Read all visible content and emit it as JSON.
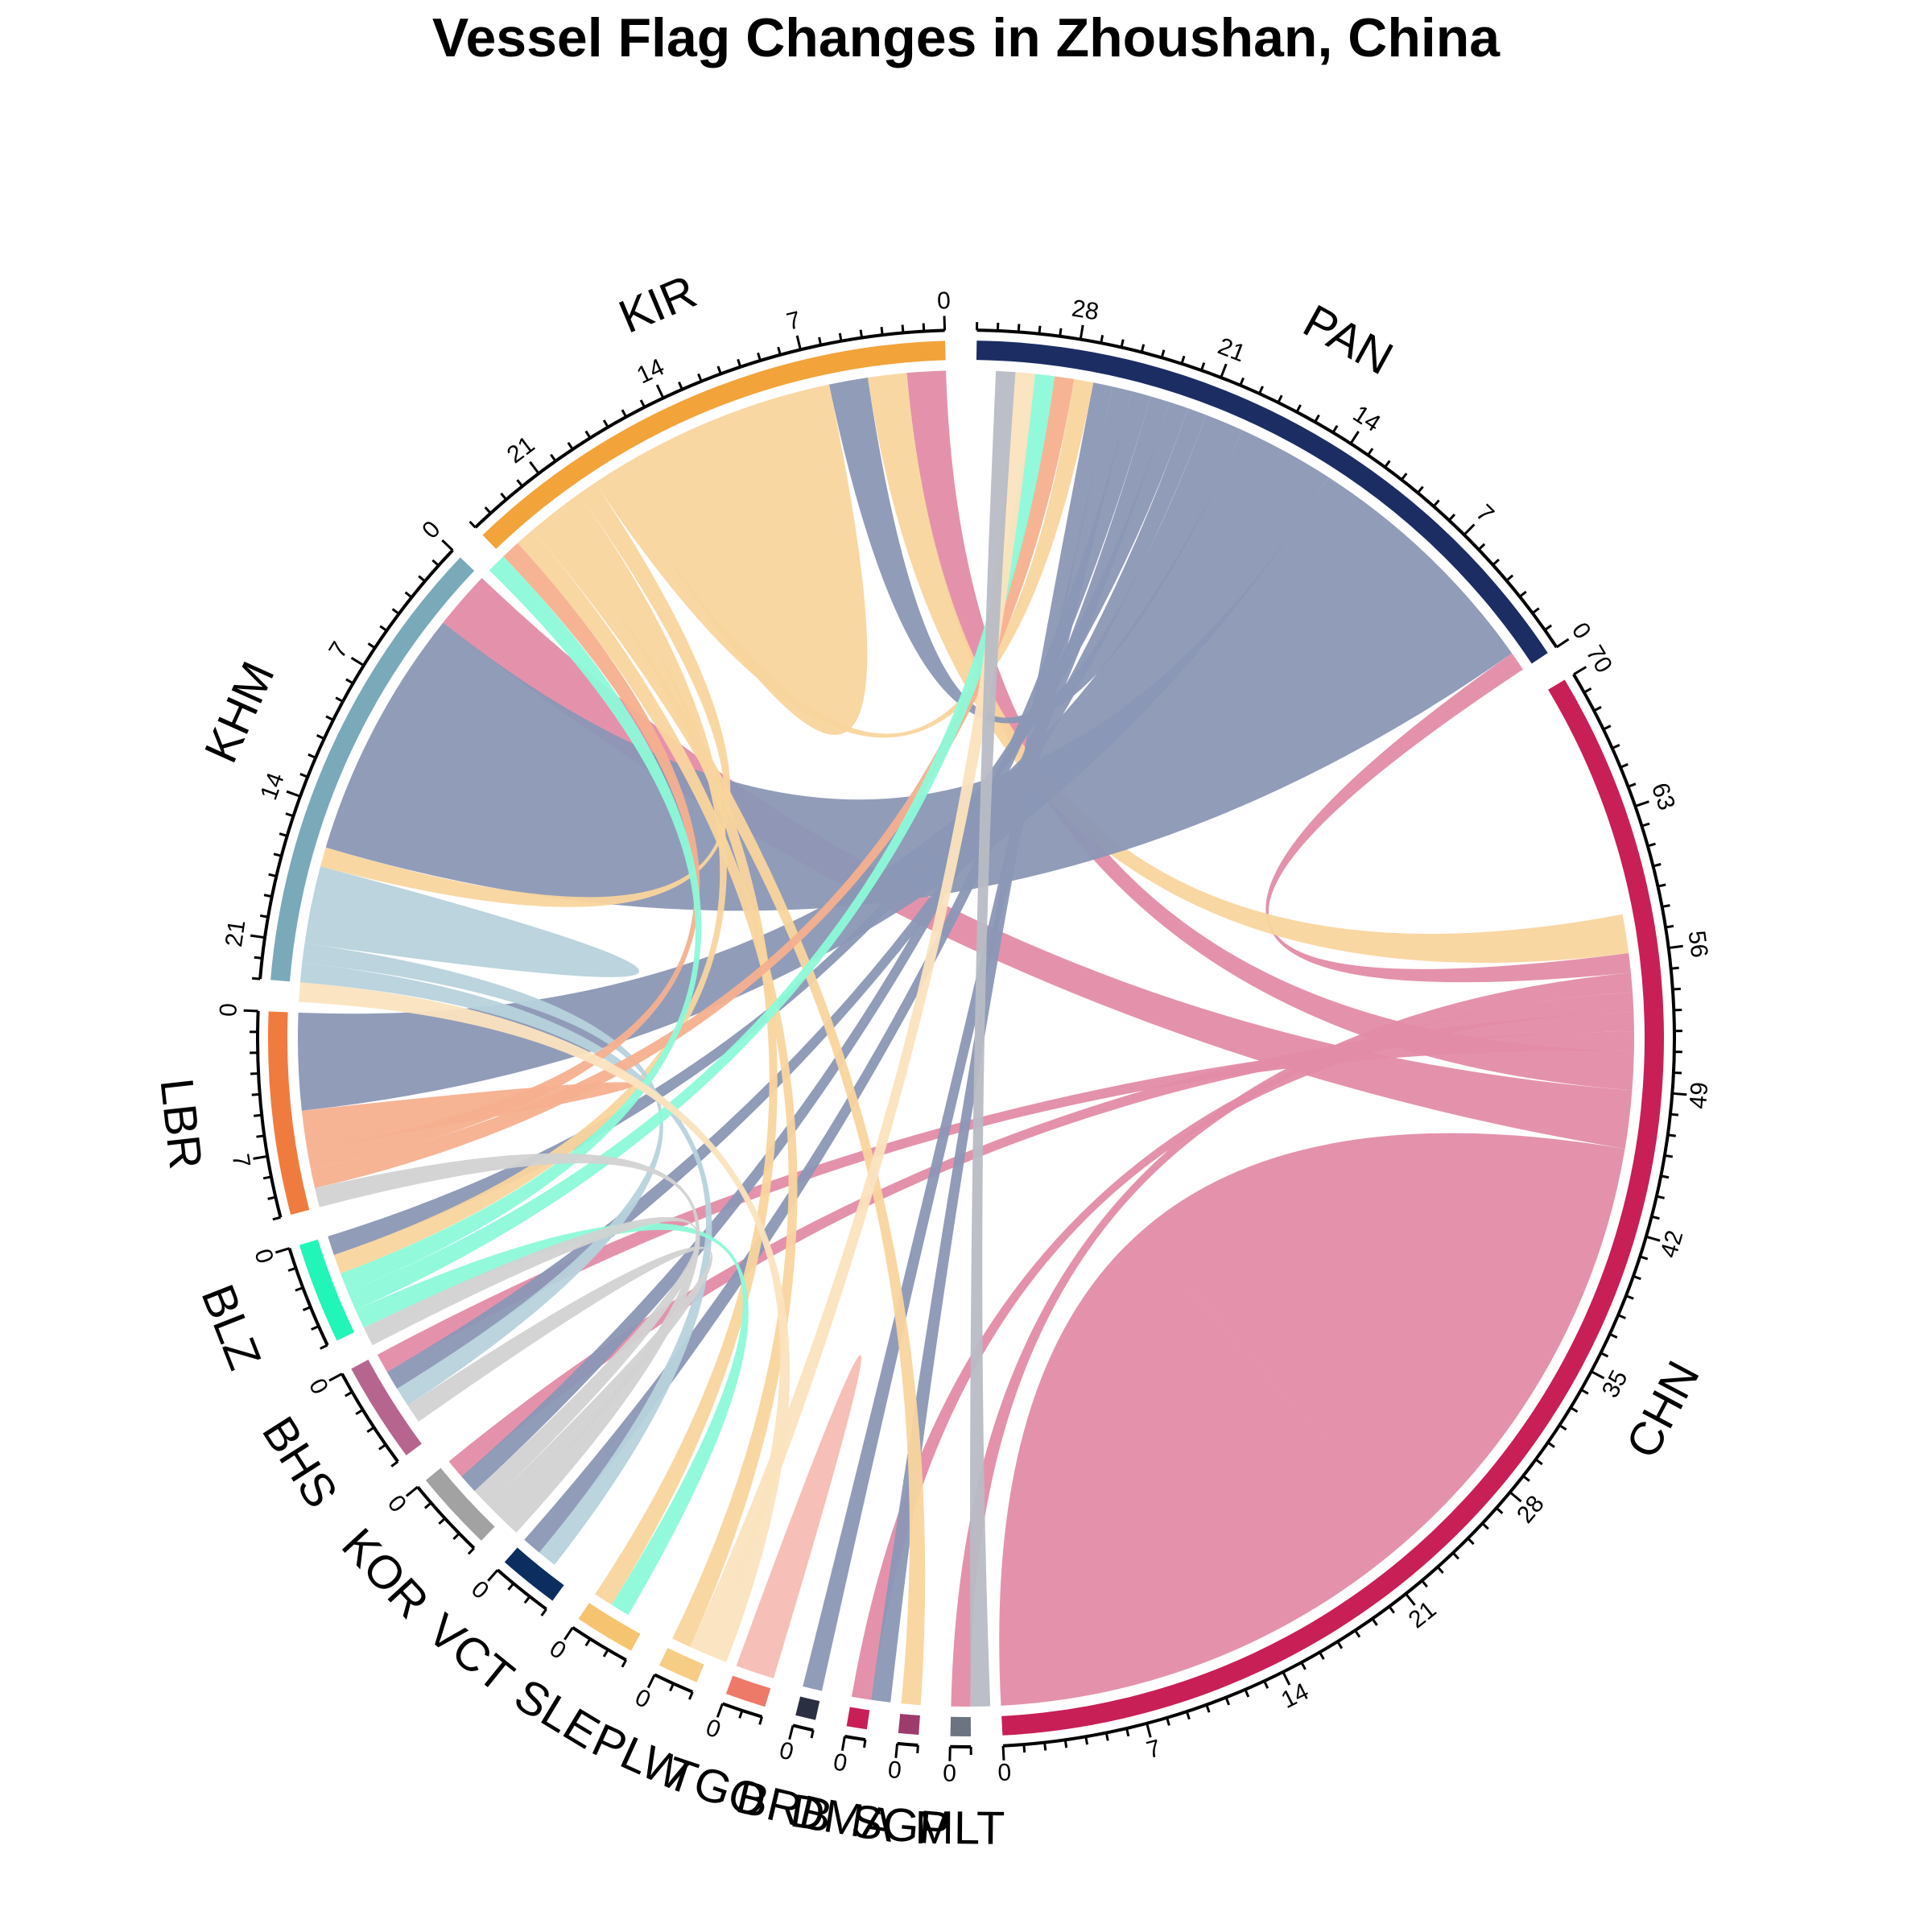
{
  "chart_data": {
    "type": "chord",
    "title": "Vessel Flag Changes in Zhoushan, China",
    "major_tick_step": 7,
    "minor_tick_step": 1,
    "sectors": [
      {
        "name": "CHN",
        "total": 70,
        "color": "#c81f56"
      },
      {
        "name": "PAN",
        "total": 33,
        "color": "#1c2d64"
      },
      {
        "name": "KIR",
        "total": 25,
        "color": "#f2a33a"
      },
      {
        "name": "KHM",
        "total": 23,
        "color": "#7aa9ba"
      },
      {
        "name": "LBR",
        "total": 10,
        "color": "#f07b3f"
      },
      {
        "name": "BLZ",
        "total": 5,
        "color": "#21f5b7"
      },
      {
        "name": "BHS",
        "total": 5,
        "color": "#b6668e"
      },
      {
        "name": "KOR",
        "total": 4,
        "color": "#a2a2a2"
      },
      {
        "name": "VCT",
        "total": 3,
        "color": "#0c2d60"
      },
      {
        "name": "SLE",
        "total": 3,
        "color": "#f6c471"
      },
      {
        "name": "PLW",
        "total": 2,
        "color": "#f7cd86"
      },
      {
        "name": "TGO",
        "total": 2,
        "color": "#ed7969"
      },
      {
        "name": "BRB",
        "total": 1,
        "color": "#2b2f42"
      },
      {
        "name": "DMA",
        "total": 1,
        "color": "#c81f56"
      },
      {
        "name": "SGP",
        "total": 1,
        "color": "#9e3b6d"
      },
      {
        "name": "MLT",
        "total": 1,
        "color": "#6c7482"
      }
    ],
    "flows": [
      {
        "from": "CHN",
        "to": "CHN",
        "value": 23,
        "color": "#e38ca7"
      },
      {
        "from": "CHN",
        "to": "KHM",
        "value": 3,
        "color": "#e38ca7"
      },
      {
        "from": "CHN",
        "to": "KIR",
        "value": 2,
        "color": "#e38ca7"
      },
      {
        "from": "CHN",
        "to": "BHS",
        "value": 1,
        "color": "#e38ca7"
      },
      {
        "from": "CHN",
        "to": "KOR",
        "value": 1,
        "color": "#e38ca7"
      },
      {
        "from": "CHN",
        "to": "DMA",
        "value": 1,
        "color": "#e38ca7"
      },
      {
        "from": "CHN",
        "to": "MLT",
        "value": 1,
        "color": "#e38ca7"
      },
      {
        "from": "CHN",
        "to": "PAN",
        "value": 1,
        "color": "#e38ca7"
      },
      {
        "from": "KIR",
        "to": "CHN",
        "value": 2,
        "color": "#f9d59e"
      },
      {
        "from": "PAN",
        "to": "KHM",
        "value": 13,
        "color": "#8b97b5"
      },
      {
        "from": "PAN",
        "to": "LBR",
        "value": 5,
        "color": "#8b97b5"
      },
      {
        "from": "PAN",
        "to": "KIR",
        "value": 2,
        "color": "#8b97b5"
      },
      {
        "from": "PAN",
        "to": "BHS",
        "value": 1,
        "color": "#8b97b5"
      },
      {
        "from": "PAN",
        "to": "BLZ",
        "value": 1,
        "color": "#8b97b5"
      },
      {
        "from": "PAN",
        "to": "VCT",
        "value": 1,
        "color": "#8b97b5"
      },
      {
        "from": "PAN",
        "to": "KOR",
        "value": 1,
        "color": "#8b97b5"
      },
      {
        "from": "PAN",
        "to": "BRB",
        "value": 1,
        "color": "#8b97b5"
      },
      {
        "from": "PAN",
        "to": "DMA",
        "value": 1,
        "color": "#8b97b5"
      },
      {
        "from": "KIR",
        "to": "KIR",
        "value": 6,
        "color": "#f9d59e"
      },
      {
        "from": "KIR",
        "to": "PAN",
        "value": 1,
        "color": "#f9d59e"
      },
      {
        "from": "KIR",
        "to": "KHM",
        "value": 1,
        "color": "#f9d59e"
      },
      {
        "from": "KIR",
        "to": "BLZ",
        "value": 1,
        "color": "#f9d59e"
      },
      {
        "from": "KIR",
        "to": "SLE",
        "value": 1,
        "color": "#f9d59e"
      },
      {
        "from": "KIR",
        "to": "SGP",
        "value": 1,
        "color": "#f9d59e"
      },
      {
        "from": "KIR",
        "to": "PLW",
        "value": 1,
        "color": "#f9d59e"
      },
      {
        "from": "KHM",
        "to": "KHM",
        "value": 2,
        "color": "#b7d2dc"
      },
      {
        "from": "KHM",
        "to": "BHS",
        "value": 1,
        "color": "#b7d2dc"
      },
      {
        "from": "KHM",
        "to": "VCT",
        "value": 1,
        "color": "#b7d2dc"
      },
      {
        "from": "LBR",
        "to": "LBR",
        "value": 1,
        "color": "#f6b08f"
      },
      {
        "from": "LBR",
        "to": "KIR",
        "value": 1,
        "color": "#f6b08f"
      },
      {
        "from": "LBR",
        "to": "PAN",
        "value": 1,
        "color": "#f6b08f"
      },
      {
        "from": "BLZ",
        "to": "KIR",
        "value": 1,
        "color": "#8cfad8"
      },
      {
        "from": "BLZ",
        "to": "PAN",
        "value": 1,
        "color": "#8cfad8"
      },
      {
        "from": "BLZ",
        "to": "SLE",
        "value": 1,
        "color": "#8cfad8"
      },
      {
        "from": "KOR",
        "to": "BLZ",
        "value": 1,
        "color": "#d2d2d2"
      },
      {
        "from": "KOR",
        "to": "BHS",
        "value": 1,
        "color": "#d2d2d2"
      },
      {
        "from": "KOR",
        "to": "LBR",
        "value": 1,
        "color": "#d2d2d2"
      },
      {
        "from": "PLW",
        "to": "PAN",
        "value": 1,
        "color": "#fbe3be"
      },
      {
        "from": "PLW",
        "to": "KHM",
        "value": 1,
        "color": "#fbe3be"
      },
      {
        "from": "TGO",
        "to": "TGO",
        "value": 1,
        "color": "#f6bcb4"
      },
      {
        "from": "MLT",
        "to": "PAN",
        "value": 1,
        "color": "#b8bcc4"
      }
    ]
  }
}
